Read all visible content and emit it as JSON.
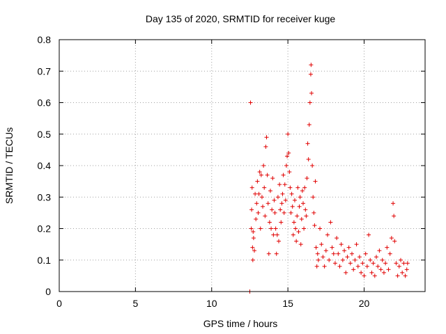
{
  "chart_data": {
    "type": "scatter",
    "title": "Day 135 of 2020, SRMTID for receiver kuge",
    "xlabel": "GPS time / hours",
    "ylabel": "SRMTID / TECUs",
    "xlim": [
      0,
      24
    ],
    "ylim": [
      0,
      0.8
    ],
    "xticks": [
      "0",
      "5",
      "10",
      "15",
      "20"
    ],
    "xtick_values": [
      0,
      5,
      10,
      15,
      20
    ],
    "yticks": [
      "0",
      "0.1",
      "0.2",
      "0.3",
      "0.4",
      "0.5",
      "0.6",
      "0.7",
      "0.8"
    ],
    "ytick_values": [
      0,
      0.1,
      0.2,
      0.3,
      0.4,
      0.5,
      0.6,
      0.7,
      0.8
    ],
    "grid": true,
    "marker": "+",
    "color": "#e00000",
    "series": [
      {
        "name": "SRMTID",
        "points": [
          [
            12.5,
            0.0
          ],
          [
            12.55,
            0.6
          ],
          [
            12.6,
            0.2
          ],
          [
            12.62,
            0.26
          ],
          [
            12.65,
            0.33
          ],
          [
            12.68,
            0.14
          ],
          [
            12.7,
            0.1
          ],
          [
            12.72,
            0.19
          ],
          [
            12.75,
            0.17
          ],
          [
            12.8,
            0.13
          ],
          [
            12.85,
            0.31
          ],
          [
            12.9,
            0.23
          ],
          [
            12.95,
            0.28
          ],
          [
            13.0,
            0.35
          ],
          [
            13.05,
            0.25
          ],
          [
            13.1,
            0.31
          ],
          [
            13.15,
            0.38
          ],
          [
            13.2,
            0.2
          ],
          [
            13.25,
            0.37
          ],
          [
            13.3,
            0.3
          ],
          [
            13.35,
            0.27
          ],
          [
            13.4,
            0.4
          ],
          [
            13.45,
            0.33
          ],
          [
            13.5,
            0.24
          ],
          [
            13.55,
            0.46
          ],
          [
            13.6,
            0.49
          ],
          [
            13.65,
            0.37
          ],
          [
            13.7,
            0.28
          ],
          [
            13.75,
            0.12
          ],
          [
            13.8,
            0.22
          ],
          [
            13.85,
            0.32
          ],
          [
            13.9,
            0.2
          ],
          [
            13.95,
            0.26
          ],
          [
            14.0,
            0.36
          ],
          [
            14.05,
            0.18
          ],
          [
            14.1,
            0.29
          ],
          [
            14.15,
            0.25
          ],
          [
            14.2,
            0.2
          ],
          [
            14.25,
            0.12
          ],
          [
            14.3,
            0.18
          ],
          [
            14.35,
            0.3
          ],
          [
            14.4,
            0.16
          ],
          [
            14.45,
            0.34
          ],
          [
            14.5,
            0.26
          ],
          [
            14.55,
            0.22
          ],
          [
            14.6,
            0.28
          ],
          [
            14.65,
            0.31
          ],
          [
            14.7,
            0.37
          ],
          [
            14.75,
            0.25
          ],
          [
            14.8,
            0.34
          ],
          [
            14.85,
            0.29
          ],
          [
            14.9,
            0.4
          ],
          [
            14.95,
            0.43
          ],
          [
            15.0,
            0.5
          ],
          [
            15.05,
            0.44
          ],
          [
            15.1,
            0.38
          ],
          [
            15.15,
            0.33
          ],
          [
            15.2,
            0.25
          ],
          [
            15.25,
            0.31
          ],
          [
            15.3,
            0.27
          ],
          [
            15.35,
            0.18
          ],
          [
            15.4,
            0.22
          ],
          [
            15.45,
            0.29
          ],
          [
            15.5,
            0.2
          ],
          [
            15.55,
            0.16
          ],
          [
            15.6,
            0.24
          ],
          [
            15.65,
            0.33
          ],
          [
            15.7,
            0.19
          ],
          [
            15.75,
            0.27
          ],
          [
            15.8,
            0.3
          ],
          [
            15.85,
            0.15
          ],
          [
            15.9,
            0.23
          ],
          [
            15.95,
            0.32
          ],
          [
            16.0,
            0.28
          ],
          [
            16.05,
            0.2
          ],
          [
            16.1,
            0.33
          ],
          [
            16.15,
            0.26
          ],
          [
            16.2,
            0.24
          ],
          [
            16.25,
            0.36
          ],
          [
            16.3,
            0.47
          ],
          [
            16.35,
            0.42
          ],
          [
            16.4,
            0.53
          ],
          [
            16.45,
            0.6
          ],
          [
            16.5,
            0.69
          ],
          [
            16.52,
            0.72
          ],
          [
            16.55,
            0.63
          ],
          [
            16.6,
            0.4
          ],
          [
            16.65,
            0.3
          ],
          [
            16.7,
            0.25
          ],
          [
            16.75,
            0.21
          ],
          [
            16.8,
            0.35
          ],
          [
            16.85,
            0.14
          ],
          [
            16.9,
            0.08
          ],
          [
            16.95,
            0.12
          ],
          [
            17.0,
            0.1
          ],
          [
            17.1,
            0.2
          ],
          [
            17.2,
            0.15
          ],
          [
            17.3,
            0.11
          ],
          [
            17.4,
            0.08
          ],
          [
            17.5,
            0.13
          ],
          [
            17.6,
            0.18
          ],
          [
            17.7,
            0.1
          ],
          [
            17.8,
            0.22
          ],
          [
            17.9,
            0.14
          ],
          [
            18.0,
            0.12
          ],
          [
            18.1,
            0.09
          ],
          [
            18.2,
            0.17
          ],
          [
            18.3,
            0.12
          ],
          [
            18.4,
            0.08
          ],
          [
            18.5,
            0.15
          ],
          [
            18.6,
            0.1
          ],
          [
            18.7,
            0.13
          ],
          [
            18.8,
            0.06
          ],
          [
            18.9,
            0.11
          ],
          [
            19.0,
            0.14
          ],
          [
            19.1,
            0.09
          ],
          [
            19.2,
            0.12
          ],
          [
            19.3,
            0.07
          ],
          [
            19.4,
            0.1
          ],
          [
            19.5,
            0.15
          ],
          [
            19.6,
            0.08
          ],
          [
            19.7,
            0.11
          ],
          [
            19.8,
            0.06
          ],
          [
            19.9,
            0.09
          ],
          [
            20.0,
            0.05
          ],
          [
            20.1,
            0.12
          ],
          [
            20.2,
            0.08
          ],
          [
            20.3,
            0.18
          ],
          [
            20.4,
            0.1
          ],
          [
            20.5,
            0.06
          ],
          [
            20.6,
            0.09
          ],
          [
            20.7,
            0.05
          ],
          [
            20.8,
            0.11
          ],
          [
            20.9,
            0.08
          ],
          [
            21.0,
            0.13
          ],
          [
            21.1,
            0.07
          ],
          [
            21.2,
            0.1
          ],
          [
            21.3,
            0.06
          ],
          [
            21.4,
            0.09
          ],
          [
            21.5,
            0.14
          ],
          [
            21.6,
            0.07
          ],
          [
            21.7,
            0.12
          ],
          [
            21.8,
            0.17
          ],
          [
            21.9,
            0.28
          ],
          [
            21.95,
            0.24
          ],
          [
            22.0,
            0.16
          ],
          [
            22.1,
            0.09
          ],
          [
            22.2,
            0.05
          ],
          [
            22.3,
            0.08
          ],
          [
            22.4,
            0.1
          ],
          [
            22.5,
            0.06
          ],
          [
            22.6,
            0.09
          ],
          [
            22.7,
            0.05
          ],
          [
            22.8,
            0.07
          ],
          [
            22.85,
            0.09
          ]
        ]
      }
    ]
  }
}
